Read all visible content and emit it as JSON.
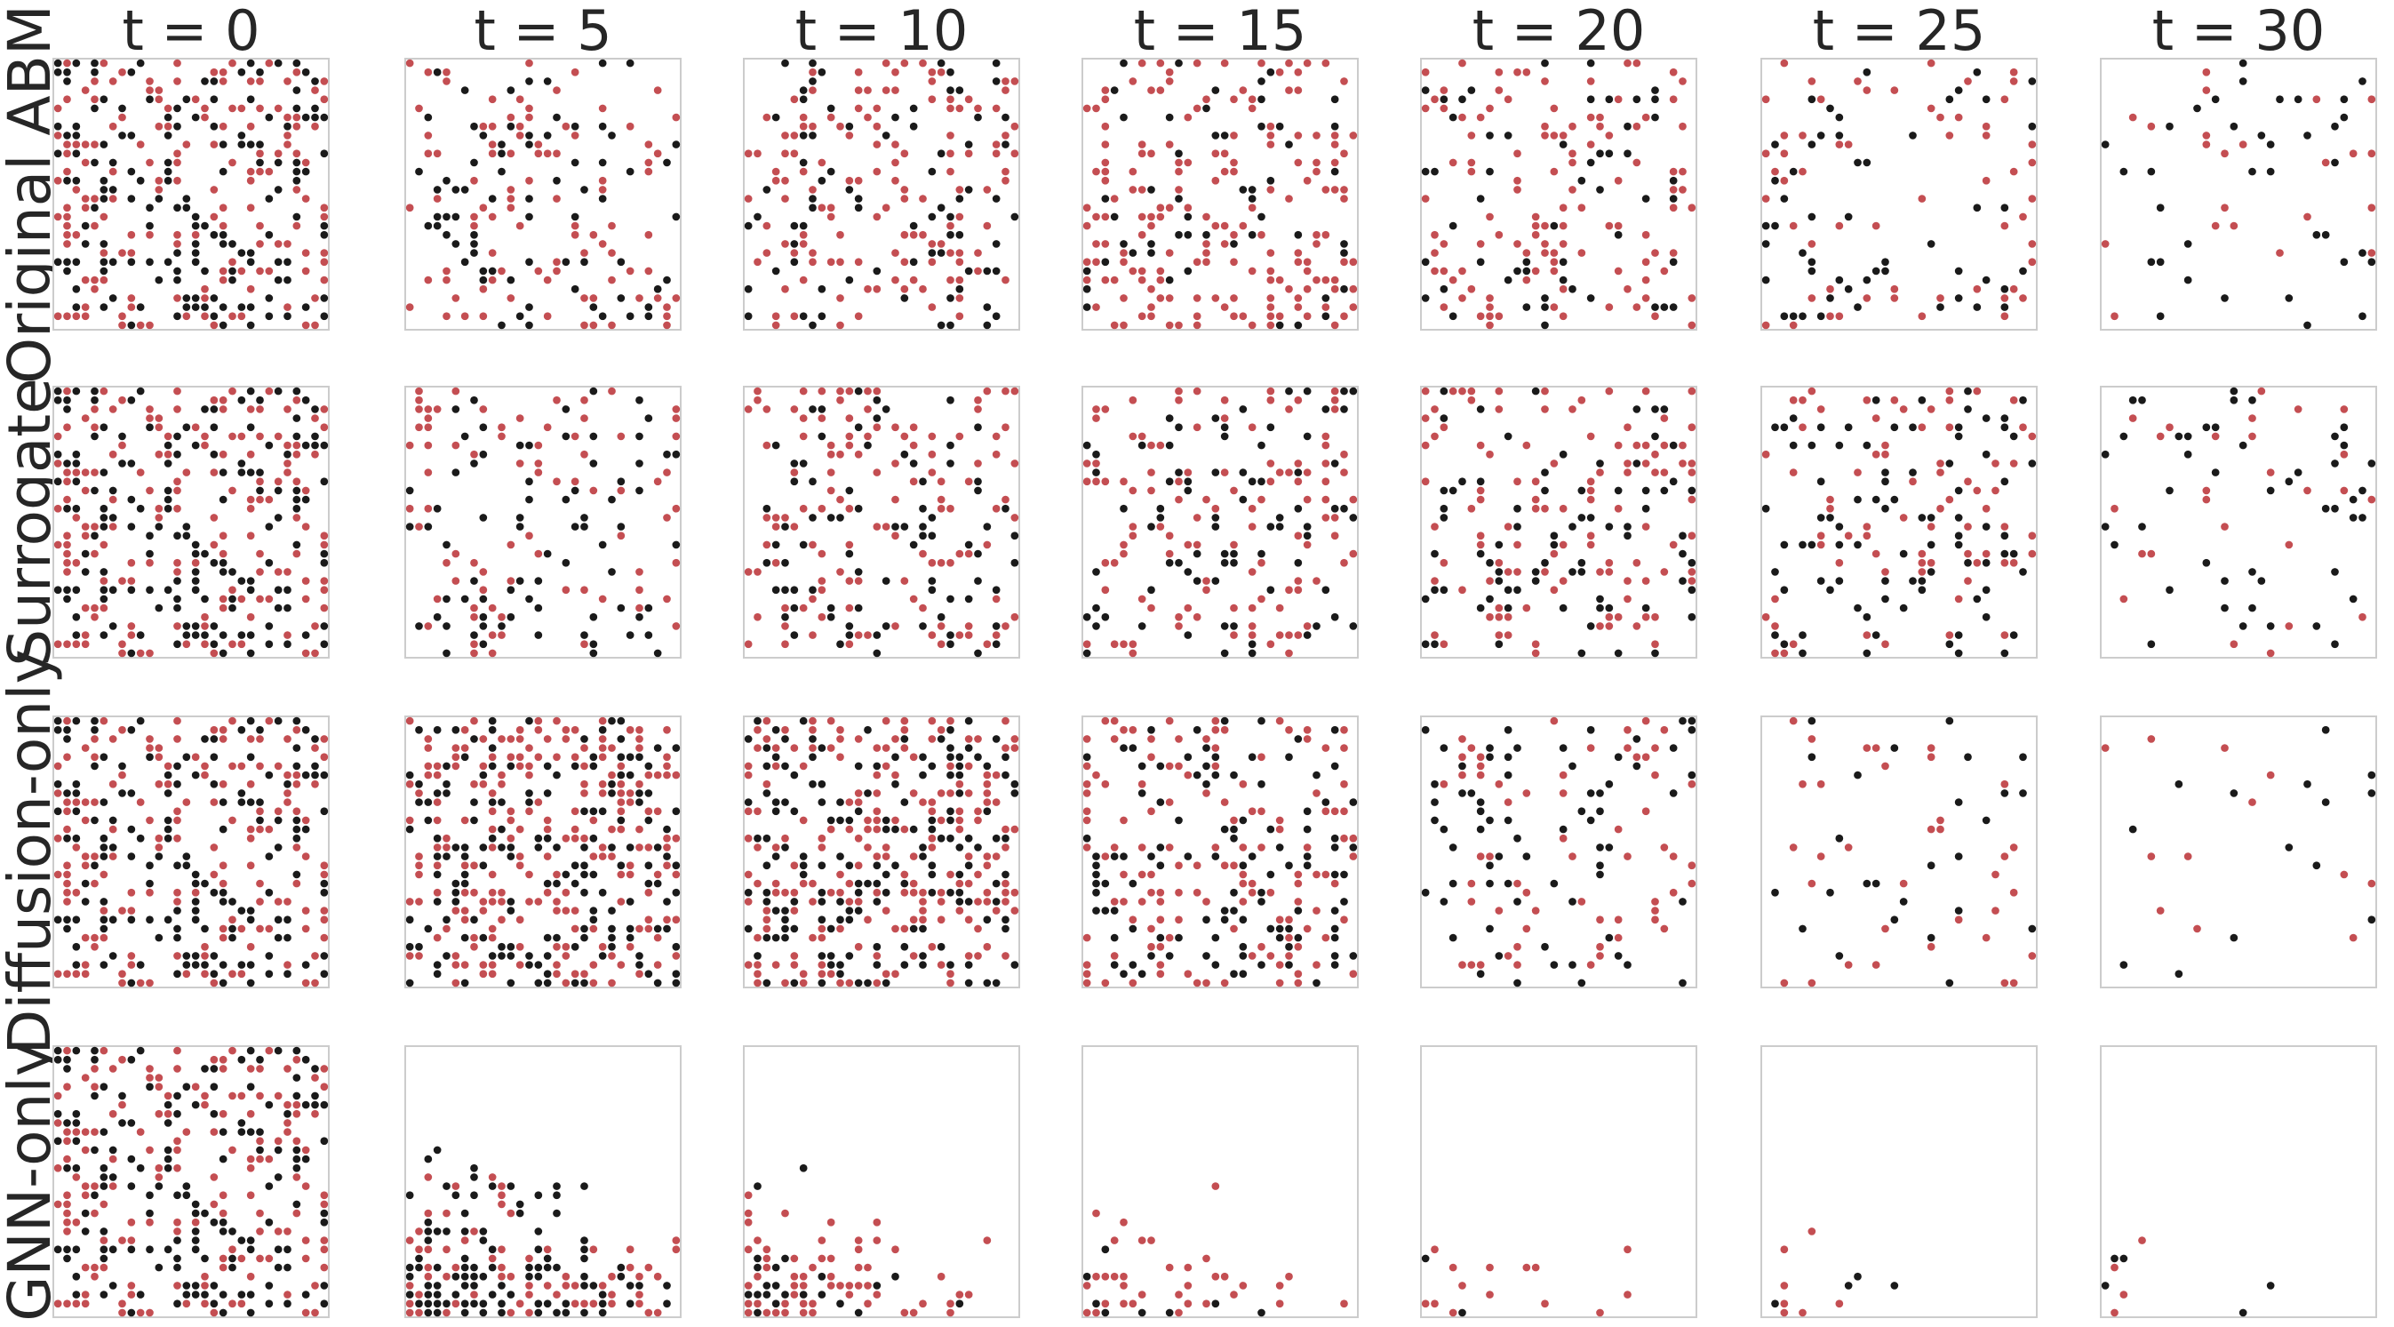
{
  "chart_data": {
    "type": "scatter",
    "description_grid": "4 x 7 grid of lattice snapshots (agent positions on a 30 x 30 grid)",
    "column_titles": [
      "t = 0",
      "t = 5",
      "t = 10",
      "t = 15",
      "t = 20",
      "t = 25",
      "t = 30"
    ],
    "row_labels": [
      "Original ABM",
      "Surrogate",
      "Diffusion-only",
      "GNN-only"
    ],
    "grid_size": 30,
    "xlim": [
      0,
      30
    ],
    "ylim": [
      0,
      30
    ],
    "axes_ticks": false,
    "grid": false,
    "series": [
      {
        "color": "#c44e52"
      },
      {
        "color": "#1a1a1a"
      }
    ],
    "panel_counts": {
      "Original ABM": [
        [
          150,
          150
        ],
        [
          92,
          72
        ],
        [
          128,
          76
        ],
        [
          168,
          52
        ],
        [
          112,
          54
        ],
        [
          58,
          52
        ],
        [
          22,
          36
        ]
      ],
      "Surrogate": [
        [
          150,
          150
        ],
        [
          76,
          74
        ],
        [
          118,
          80
        ],
        [
          110,
          78
        ],
        [
          108,
          76
        ],
        [
          72,
          86
        ],
        [
          26,
          46
        ]
      ],
      "Diffusion-only": [
        [
          150,
          150
        ],
        [
          200,
          160
        ],
        [
          190,
          160
        ],
        [
          130,
          108
        ],
        [
          60,
          70
        ],
        [
          34,
          26
        ],
        [
          12,
          14
        ]
      ],
      "GNN-only": [
        [
          150,
          150
        ],
        [
          64,
          96
        ],
        [
          58,
          22
        ],
        [
          34,
          8
        ],
        [
          14,
          2
        ],
        [
          7,
          4
        ],
        [
          4,
          5
        ]
      ]
    }
  }
}
